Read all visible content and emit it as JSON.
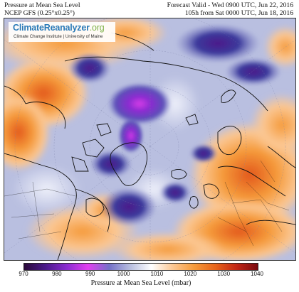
{
  "header": {
    "left_line1": "Pressure at Mean Sea Level",
    "left_line2": "NCEP GFS (0.25°x0.25°)",
    "right_line1": "Forecast Valid - Wed 0900 UTC, Jun 22, 2016",
    "right_line2": "105h from Sat 0000 UTC, Jun 18, 2016"
  },
  "logo": {
    "climate": "Climate",
    "reanalyzer": "Reanalyzer",
    "org": ".org",
    "subtitle": "Climate Change Institute | University of Maine"
  },
  "colorbar": {
    "label": "Pressure at Mean Sea Level (mbar)",
    "ticks": [
      "970",
      "980",
      "990",
      "1000",
      "1010",
      "1020",
      "1030",
      "1040"
    ],
    "range": [
      970,
      1040
    ],
    "stops": [
      "#2a0a3a",
      "#4b1a8a",
      "#8a2bd0",
      "#e23ef0",
      "#7470c8",
      "#b8bedf",
      "#ffffff",
      "#fbc793",
      "#f59a3a",
      "#e86419",
      "#c22616",
      "#7a0a10"
    ]
  },
  "map": {
    "projection": "north-polar-stereographic",
    "colors": {
      "ocean_neutral": "#c8cfe8",
      "high_orange": "#f59a3a",
      "high_red": "#e2571c",
      "low_purple": "#5c1fb0",
      "low_magenta": "#d63de8",
      "low_indigo": "#2e2878",
      "coastline": "#111111"
    }
  }
}
